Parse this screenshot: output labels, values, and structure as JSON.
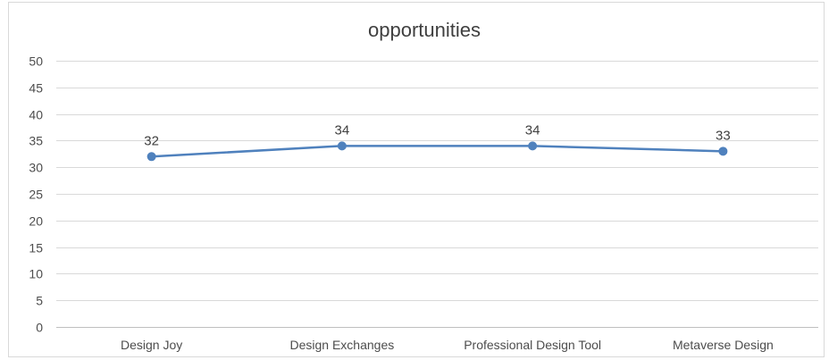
{
  "chart_data": {
    "type": "line",
    "title": "opportunities",
    "xlabel": "",
    "ylabel": "",
    "categories": [
      "Design Joy",
      "Design Exchanges",
      "Professional Design Tool",
      "Metaverse Design"
    ],
    "series": [
      {
        "values": [
          32,
          34,
          34,
          33
        ]
      }
    ],
    "ylim": [
      0,
      50
    ],
    "yticks": [
      0,
      5,
      10,
      15,
      20,
      25,
      30,
      35,
      40,
      45,
      50
    ],
    "data_labels": [
      "32",
      "34",
      "34",
      "33"
    ],
    "grid": true,
    "legend": "none",
    "colors": {
      "line": "#4f81bd",
      "marker": "#4f81bd",
      "gridline": "#d9d9d9",
      "axis": "#bfbfbf"
    }
  }
}
